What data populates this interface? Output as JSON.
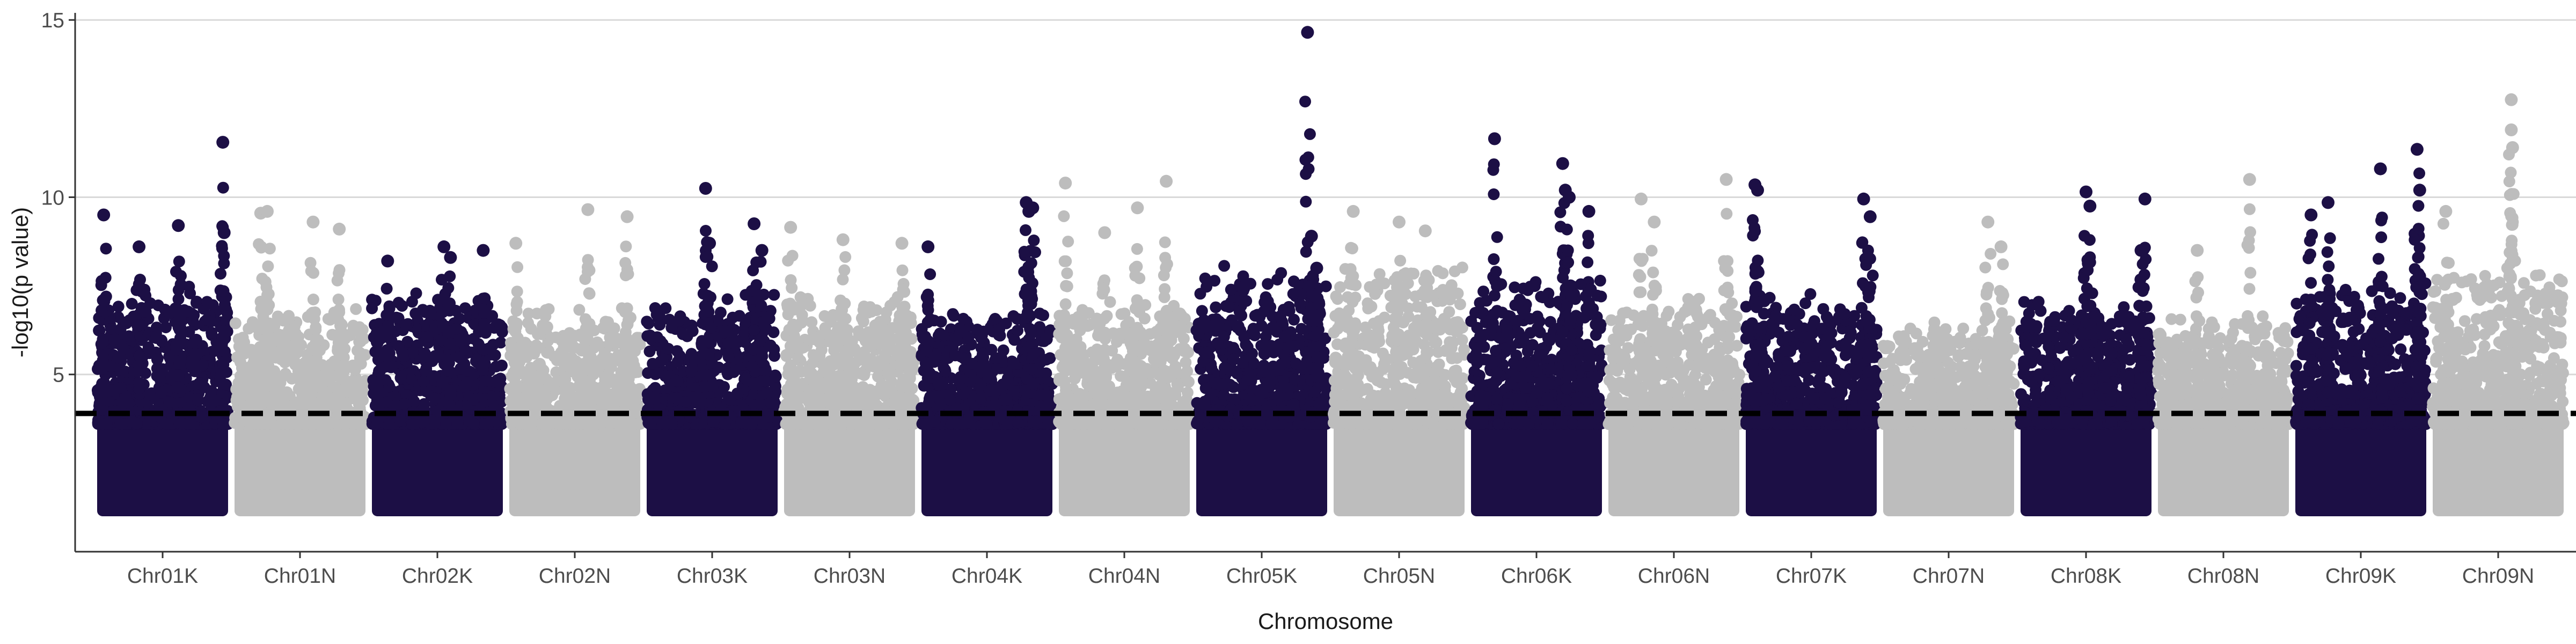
{
  "chart_data": {
    "type": "scatter",
    "title": "",
    "xlabel": "Chromosome",
    "ylabel": "-log10(p value)",
    "ylim": [
      0,
      15.2
    ],
    "yticks": [
      5,
      10,
      15
    ],
    "grid": "horizontal major lines",
    "threshold": 3.9,
    "colors": {
      "dark": "#1c0f45",
      "light": "#bdbdbd",
      "grid": "#d9d9d9",
      "threshold": "#000000"
    },
    "categories": [
      "Chr01K",
      "Chr01N",
      "Chr02K",
      "Chr02N",
      "Chr03K",
      "Chr03N",
      "Chr04K",
      "Chr04N",
      "Chr05K",
      "Chr05N",
      "Chr06K",
      "Chr06N",
      "Chr07K",
      "Chr07N",
      "Chr08K",
      "Chr08N",
      "Chr09K",
      "Chr09N"
    ],
    "series": [
      {
        "category": "Chr01K",
        "color": "dark",
        "base": 7.0,
        "peaks": [
          [
            0.05,
            9.5
          ],
          [
            0.32,
            8.6
          ],
          [
            0.62,
            9.2
          ],
          [
            0.96,
            11.55
          ],
          [
            0.97,
            9.0
          ]
        ]
      },
      {
        "category": "Chr01N",
        "color": "light",
        "base": 6.6,
        "peaks": [
          [
            0.2,
            9.55
          ],
          [
            0.25,
            9.6
          ],
          [
            0.6,
            9.3
          ],
          [
            0.8,
            9.1
          ]
        ]
      },
      {
        "category": "Chr02K",
        "color": "dark",
        "base": 6.9,
        "peaks": [
          [
            0.12,
            8.2
          ],
          [
            0.55,
            8.6
          ],
          [
            0.6,
            8.3
          ],
          [
            0.85,
            8.5
          ]
        ]
      },
      {
        "category": "Chr02N",
        "color": "light",
        "base": 6.5,
        "peaks": [
          [
            0.05,
            8.7
          ],
          [
            0.6,
            9.65
          ],
          [
            0.9,
            9.45
          ]
        ]
      },
      {
        "category": "Chr03K",
        "color": "dark",
        "base": 6.8,
        "peaks": [
          [
            0.45,
            10.25
          ],
          [
            0.48,
            8.7
          ],
          [
            0.82,
            9.25
          ],
          [
            0.88,
            8.5
          ]
        ]
      },
      {
        "category": "Chr03N",
        "color": "light",
        "base": 6.9,
        "peaks": [
          [
            0.05,
            9.15
          ],
          [
            0.45,
            8.8
          ],
          [
            0.9,
            8.7
          ]
        ]
      },
      {
        "category": "Chr04K",
        "color": "dark",
        "base": 6.6,
        "peaks": [
          [
            0.05,
            8.6
          ],
          [
            0.8,
            9.85
          ],
          [
            0.82,
            9.6
          ],
          [
            0.85,
            9.7
          ]
        ]
      },
      {
        "category": "Chr04N",
        "color": "light",
        "base": 6.8,
        "peaks": [
          [
            0.05,
            10.4
          ],
          [
            0.35,
            9.0
          ],
          [
            0.6,
            9.7
          ],
          [
            0.82,
            10.45
          ]
        ]
      },
      {
        "category": "Chr05K",
        "color": "dark",
        "base": 7.6,
        "peaks": [
          [
            0.85,
            14.65
          ],
          [
            0.88,
            8.9
          ],
          [
            0.92,
            8.0
          ]
        ]
      },
      {
        "category": "Chr05N",
        "color": "light",
        "base": 7.5,
        "peaks": [
          [
            0.15,
            9.6
          ],
          [
            0.5,
            9.3
          ],
          [
            0.7,
            9.05
          ]
        ]
      },
      {
        "category": "Chr06K",
        "color": "dark",
        "base": 7.3,
        "peaks": [
          [
            0.18,
            11.65
          ],
          [
            0.7,
            10.95
          ],
          [
            0.72,
            10.2
          ],
          [
            0.75,
            10.0
          ],
          [
            0.9,
            9.6
          ]
        ]
      },
      {
        "category": "Chr06N",
        "color": "light",
        "base": 6.8,
        "peaks": [
          [
            0.25,
            9.95
          ],
          [
            0.35,
            9.3
          ],
          [
            0.9,
            10.5
          ]
        ]
      },
      {
        "category": "Chr07K",
        "color": "dark",
        "base": 6.8,
        "peaks": [
          [
            0.07,
            10.35
          ],
          [
            0.09,
            10.2
          ],
          [
            0.9,
            9.95
          ],
          [
            0.95,
            9.45
          ]
        ]
      },
      {
        "category": "Chr07N",
        "color": "light",
        "base": 6.2,
        "peaks": [
          [
            0.8,
            9.3
          ],
          [
            0.9,
            8.6
          ]
        ]
      },
      {
        "category": "Chr08K",
        "color": "dark",
        "base": 6.7,
        "peaks": [
          [
            0.5,
            10.15
          ],
          [
            0.53,
            9.75
          ],
          [
            0.95,
            9.95
          ],
          [
            0.92,
            8.5
          ]
        ]
      },
      {
        "category": "Chr08N",
        "color": "light",
        "base": 6.3,
        "peaks": [
          [
            0.3,
            8.5
          ],
          [
            0.7,
            10.5
          ]
        ]
      },
      {
        "category": "Chr09K",
        "color": "dark",
        "base": 7.1,
        "peaks": [
          [
            0.12,
            9.5
          ],
          [
            0.25,
            9.85
          ],
          [
            0.65,
            10.8
          ],
          [
            0.93,
            11.35
          ],
          [
            0.95,
            10.2
          ]
        ]
      },
      {
        "category": "Chr09N",
        "color": "light",
        "base": 7.6,
        "peaks": [
          [
            0.1,
            9.6
          ],
          [
            0.6,
            12.75
          ],
          [
            0.6,
            11.9
          ],
          [
            0.61,
            11.4
          ]
        ]
      }
    ]
  }
}
